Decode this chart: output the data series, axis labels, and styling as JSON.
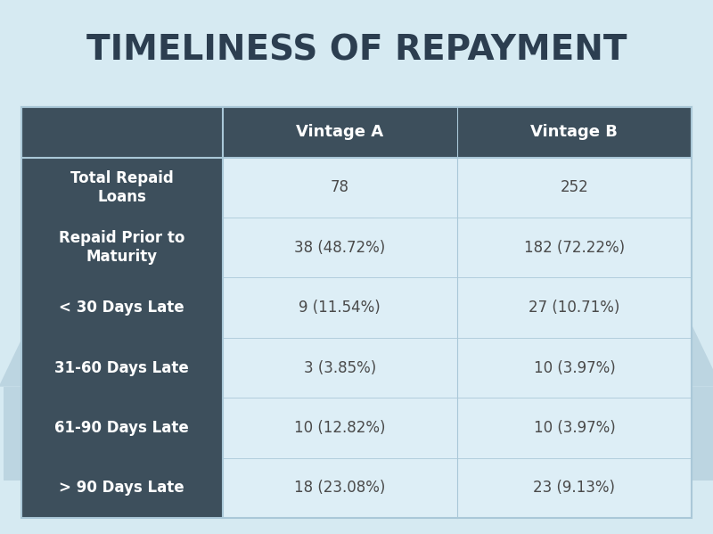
{
  "title": "TIMELINESS OF REPAYMENT",
  "background_color": "#d6eaf2",
  "header_bg_color": "#3d4f5c",
  "header_text_color": "#ffffff",
  "row_label_bg_color": "#3d4f5c",
  "row_label_text_color": "#ffffff",
  "cell_bg_color": "#ddeef6",
  "cell_text_color": "#4a4a4a",
  "grid_line_color": "#aac8d8",
  "columns": [
    "Vintage A",
    "Vintage B"
  ],
  "rows": [
    "Total Repaid\nLoans",
    "Repaid Prior to\nMaturity",
    "< 30 Days Late",
    "31-60 Days Late",
    "61-90 Days Late",
    "> 90 Days Late"
  ],
  "data": [
    [
      "78",
      "252"
    ],
    [
      "38 (48.72%)",
      "182 (72.22%)"
    ],
    [
      "9 (11.54%)",
      "27 (10.71%)"
    ],
    [
      "3 (3.85%)",
      "10 (3.97%)"
    ],
    [
      "10 (12.82%)",
      "10 (3.97%)"
    ],
    [
      "18 (23.08%)",
      "23 (9.13%)"
    ]
  ],
  "title_fontsize": 28,
  "header_fontsize": 13,
  "row_label_fontsize": 12,
  "cell_fontsize": 12
}
